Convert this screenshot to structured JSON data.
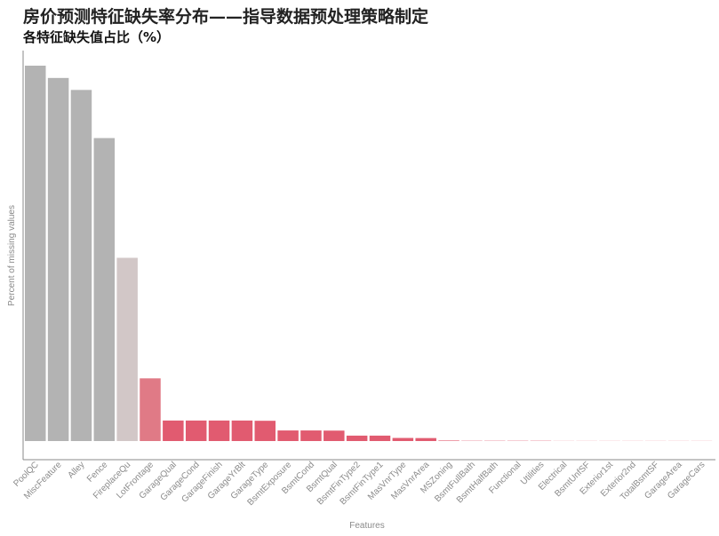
{
  "page": {
    "title": "房价预测特征缺失率分布——指导数据预处理策略制定",
    "subtitle": "各特征缺失值占比（%）"
  },
  "chart_data": {
    "type": "bar",
    "xlabel": "Features",
    "ylabel": "Percent of missing values",
    "ylim": [
      0,
      100
    ],
    "grid": false,
    "legend": "none",
    "categories": [
      "PoolQC",
      "MiscFeature",
      "Alley",
      "Fence",
      "FireplaceQu",
      "LotFrontage",
      "GarageQual",
      "GarageCond",
      "GarageFinish",
      "GarageYrBlt",
      "GarageType",
      "BsmtExposure",
      "BsmtCond",
      "BsmtQual",
      "BsmtFinType2",
      "BsmtFinType1",
      "MasVnrType",
      "MasVnrArea",
      "MSZoning",
      "BsmtFullBath",
      "BsmtHalfBath",
      "Functional",
      "Utilities",
      "Electrical",
      "BsmtUnfSF",
      "Exterior1st",
      "Exterior2nd",
      "TotalBsmtSF",
      "GarageArea",
      "GarageCars"
    ],
    "values": [
      99.66,
      96.4,
      93.22,
      80.44,
      48.65,
      16.65,
      5.45,
      5.45,
      5.45,
      5.45,
      5.38,
      2.81,
      2.81,
      2.77,
      1.44,
      1.44,
      0.82,
      0.79,
      0.14,
      0.07,
      0.07,
      0.07,
      0.07,
      0.03,
      0.03,
      0.03,
      0.03,
      0.03,
      0.03,
      0.03
    ],
    "colors": {
      "high": "#b3b3b3",
      "mid": "#d2c7c7",
      "low": "#e07a86",
      "lowest": "#e15b70",
      "axis": "#8a8a8a"
    }
  }
}
